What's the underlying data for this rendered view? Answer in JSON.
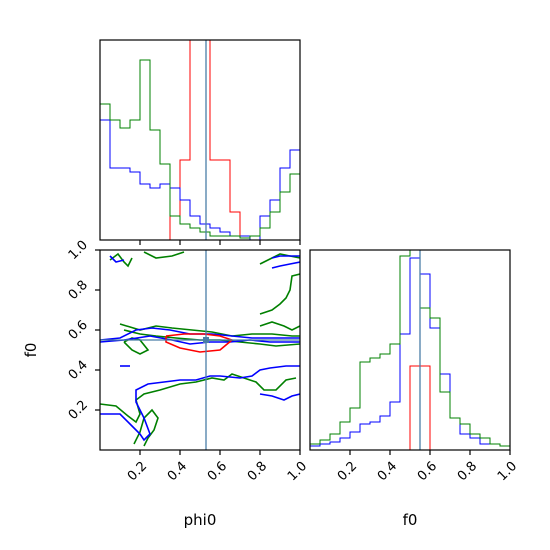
{
  "chart_data": {
    "type": "corner",
    "parameters": [
      "phi0",
      "f0"
    ],
    "xlabels": [
      "phi0",
      "f0"
    ],
    "ylabel": "f0",
    "range": [
      0,
      1
    ],
    "ticks": [
      "0.2",
      "0.4",
      "0.6",
      "0.8",
      "1.0"
    ],
    "ytick_labels": [
      "0.2",
      "0.4",
      "0.6",
      "0.8",
      "1.0"
    ],
    "truth": {
      "phi0": 0.53,
      "f0": 0.55
    },
    "truth_color": "#4a7ea8",
    "series": [
      {
        "color": "#ff0000",
        "linewidth": 1
      },
      {
        "color": "#0000ff",
        "linewidth": 1
      },
      {
        "color": "#008000",
        "linewidth": 1
      }
    ],
    "phi0_hist": {
      "bin_width": 0.05,
      "ymax": 1.0,
      "values": {
        "red": [
          0,
          0,
          0,
          0,
          0,
          0,
          0,
          0.12,
          0.4,
          1.0,
          1.0,
          0.4,
          0.4,
          0.14,
          0.02,
          0,
          0,
          0,
          0,
          0
        ],
        "blue": [
          0.6,
          0.36,
          0.36,
          0.34,
          0.28,
          0.26,
          0.28,
          0.26,
          0.2,
          0.12,
          0.08,
          0.06,
          0.04,
          0.02,
          0.02,
          0,
          0.12,
          0.2,
          0.36,
          0.45
        ],
        "green": [
          0.68,
          0.6,
          0.56,
          0.6,
          0.9,
          0.55,
          0.38,
          0.12,
          0.08,
          0.06,
          0.04,
          0.02,
          0.02,
          0.02,
          0.01,
          0.02,
          0.06,
          0.14,
          0.24,
          0.33
        ]
      }
    },
    "f0_hist": {
      "bin_width": 0.05,
      "ymax": 1.0,
      "values": {
        "red": [
          0,
          0,
          0,
          0,
          0,
          0,
          0,
          0,
          0,
          0,
          0.42,
          0.42,
          0,
          0,
          0,
          0,
          0,
          0,
          0,
          0
        ],
        "blue": [
          0.02,
          0.03,
          0.04,
          0.06,
          0.09,
          0.13,
          0.14,
          0.17,
          0.24,
          0.58,
          0.96,
          0.88,
          0.61,
          0.38,
          0.16,
          0.08,
          0.06,
          0.03,
          0.03,
          0.02
        ],
        "green": [
          0.03,
          0.05,
          0.08,
          0.14,
          0.21,
          0.44,
          0.46,
          0.48,
          0.53,
          0.97,
          1.0,
          0.71,
          0.66,
          0.29,
          0.16,
          0.13,
          0.08,
          0.06,
          0.03,
          0.02
        ]
      }
    },
    "contours": {
      "red": [
        [
          [
            0.33,
            0.57
          ],
          [
            0.42,
            0.58
          ],
          [
            0.52,
            0.58
          ],
          [
            0.6,
            0.57
          ],
          [
            0.66,
            0.55
          ],
          [
            0.6,
            0.5
          ],
          [
            0.5,
            0.49
          ],
          [
            0.4,
            0.51
          ],
          [
            0.33,
            0.54
          ],
          [
            0.33,
            0.57
          ]
        ]
      ],
      "blue": [
        [
          [
            0.0,
            0.55
          ],
          [
            0.1,
            0.56
          ],
          [
            0.18,
            0.6
          ],
          [
            0.26,
            0.61
          ],
          [
            0.35,
            0.6
          ],
          [
            0.45,
            0.58
          ],
          [
            0.56,
            0.58
          ],
          [
            0.66,
            0.57
          ],
          [
            0.76,
            0.56
          ],
          [
            0.86,
            0.56
          ],
          [
            0.94,
            0.56
          ],
          [
            1.0,
            0.56
          ]
        ],
        [
          [
            0.0,
            0.54
          ],
          [
            0.12,
            0.55
          ],
          [
            0.25,
            0.57
          ],
          [
            0.36,
            0.55
          ],
          [
            0.45,
            0.53
          ],
          [
            0.55,
            0.54
          ],
          [
            0.65,
            0.54
          ],
          [
            0.75,
            0.55
          ],
          [
            0.85,
            0.54
          ],
          [
            0.95,
            0.54
          ],
          [
            1.0,
            0.54
          ]
        ],
        [
          [
            0.0,
            0.18
          ],
          [
            0.1,
            0.18
          ],
          [
            0.16,
            0.12
          ],
          [
            0.2,
            0.08
          ],
          [
            0.22,
            0.05
          ],
          [
            0.25,
            0.08
          ],
          [
            0.22,
            0.16
          ],
          [
            0.18,
            0.24
          ],
          [
            0.18,
            0.3
          ],
          [
            0.24,
            0.33
          ],
          [
            0.32,
            0.34
          ],
          [
            0.4,
            0.35
          ],
          [
            0.48,
            0.35
          ],
          [
            0.55,
            0.37
          ],
          [
            0.6,
            0.37
          ],
          [
            0.7,
            0.36
          ],
          [
            0.76,
            0.37
          ],
          [
            0.8,
            0.4
          ],
          [
            0.85,
            0.41
          ],
          [
            0.93,
            0.42
          ],
          [
            1.0,
            0.42
          ]
        ],
        [
          [
            0.1,
            0.42
          ],
          [
            0.15,
            0.42
          ]
        ],
        [
          [
            0.8,
            0.28
          ],
          [
            0.86,
            0.27
          ],
          [
            0.92,
            0.25
          ],
          [
            0.96,
            0.27
          ],
          [
            1.0,
            0.28
          ]
        ],
        [
          [
            0.86,
            0.96
          ],
          [
            0.9,
            0.97
          ],
          [
            0.96,
            0.97
          ],
          [
            1.0,
            0.97
          ]
        ],
        [
          [
            0.86,
            0.91
          ],
          [
            0.9,
            0.92
          ],
          [
            0.95,
            0.93
          ],
          [
            1.0,
            0.94
          ]
        ],
        [
          [
            0.05,
            0.97
          ],
          [
            0.08,
            0.94
          ],
          [
            0.12,
            0.95
          ]
        ]
      ],
      "green": [
        [
          [
            0.1,
            0.63
          ],
          [
            0.2,
            0.6
          ],
          [
            0.28,
            0.62
          ],
          [
            0.36,
            0.61
          ],
          [
            0.46,
            0.6
          ],
          [
            0.56,
            0.59
          ],
          [
            0.66,
            0.57
          ],
          [
            0.76,
            0.58
          ],
          [
            0.86,
            0.58
          ],
          [
            0.96,
            0.57
          ],
          [
            1.0,
            0.57
          ]
        ],
        [
          [
            0.12,
            0.6
          ],
          [
            0.2,
            0.58
          ],
          [
            0.28,
            0.57
          ],
          [
            0.38,
            0.56
          ],
          [
            0.5,
            0.55
          ],
          [
            0.6,
            0.55
          ],
          [
            0.7,
            0.54
          ],
          [
            0.8,
            0.53
          ],
          [
            0.88,
            0.52
          ],
          [
            1.0,
            0.53
          ]
        ],
        [
          [
            0.12,
            0.54
          ],
          [
            0.16,
            0.5
          ],
          [
            0.2,
            0.48
          ],
          [
            0.24,
            0.5
          ],
          [
            0.2,
            0.55
          ],
          [
            0.16,
            0.56
          ],
          [
            0.12,
            0.54
          ]
        ],
        [
          [
            0.0,
            0.23
          ],
          [
            0.08,
            0.22
          ],
          [
            0.14,
            0.17
          ],
          [
            0.18,
            0.14
          ],
          [
            0.2,
            0.18
          ],
          [
            0.18,
            0.25
          ],
          [
            0.22,
            0.28
          ],
          [
            0.3,
            0.3
          ],
          [
            0.4,
            0.33
          ],
          [
            0.48,
            0.34
          ],
          [
            0.56,
            0.36
          ],
          [
            0.62,
            0.35
          ],
          [
            0.66,
            0.38
          ],
          [
            0.72,
            0.36
          ],
          [
            0.78,
            0.34
          ],
          [
            0.82,
            0.3
          ],
          [
            0.88,
            0.3
          ],
          [
            0.93,
            0.35
          ],
          [
            0.98,
            0.36
          ]
        ],
        [
          [
            0.17,
            0.03
          ],
          [
            0.2,
            0.09
          ],
          [
            0.22,
            0.16
          ],
          [
            0.26,
            0.2
          ],
          [
            0.29,
            0.16
          ],
          [
            0.27,
            0.1
          ],
          [
            0.24,
            0.06
          ],
          [
            0.22,
            0.02
          ]
        ],
        [
          [
            0.8,
            0.68
          ],
          [
            0.86,
            0.7
          ],
          [
            0.9,
            0.73
          ],
          [
            0.93,
            0.76
          ],
          [
            0.95,
            0.8
          ],
          [
            0.96,
            0.87
          ],
          [
            1.0,
            0.88
          ]
        ],
        [
          [
            0.8,
            0.62
          ],
          [
            0.86,
            0.64
          ],
          [
            0.92,
            0.62
          ],
          [
            0.96,
            0.6
          ],
          [
            1.0,
            0.62
          ]
        ],
        [
          [
            0.8,
            0.93
          ],
          [
            0.84,
            0.95
          ],
          [
            0.9,
            0.98
          ],
          [
            0.95,
            0.97
          ],
          [
            1.0,
            0.96
          ]
        ],
        [
          [
            0.05,
            0.95
          ],
          [
            0.09,
            0.98
          ],
          [
            0.12,
            0.94
          ],
          [
            0.14,
            0.92
          ],
          [
            0.16,
            0.96
          ]
        ],
        [
          [
            0.22,
            0.99
          ],
          [
            0.28,
            0.96
          ],
          [
            0.36,
            0.97
          ],
          [
            0.42,
            0.99
          ]
        ]
      ]
    }
  }
}
